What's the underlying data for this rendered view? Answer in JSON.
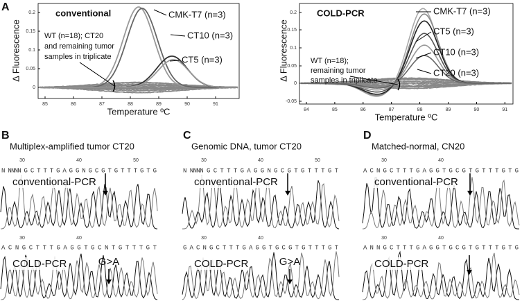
{
  "panel_a": {
    "label": "A",
    "left": {
      "title": "conventional",
      "y_axis": "Δ Fluorescence",
      "x_axis": "Temperature ºC",
      "yticks": [
        "0.2",
        "0.15",
        "0.1",
        "0.05",
        "0"
      ],
      "xticks": [
        "85",
        "86",
        "87",
        "88",
        "89",
        "90",
        "91"
      ],
      "curve_labels": [
        "CMK-T7 (n=3)",
        "CT10 (n=3)",
        "CT5 (n=3)"
      ],
      "note": [
        "WT (n=18); CT20",
        "and remaining tumor",
        "samples in triplicate"
      ]
    },
    "right": {
      "title": "COLD-PCR",
      "y_axis": "Δ Fluorescence",
      "x_axis": "Temperature ºC",
      "yticks": [
        "0.2",
        "0.15",
        "0.1",
        "0.05",
        "0",
        "-0.05"
      ],
      "xticks": [
        "84",
        "85",
        "86",
        "87",
        "88",
        "89",
        "90",
        "91"
      ],
      "curve_labels": [
        "CMK-T7 (n=3)",
        "CT5 (n=3)",
        "CT10 (n=3)",
        "CT20 (n=3)"
      ],
      "note": [
        "WT (n=18);",
        "remaining tumor",
        "samples in triplicate"
      ]
    }
  },
  "panels": [
    {
      "label": "B",
      "title": "Multiplex-amplified tumor CT20",
      "top_numbers": [
        "30",
        "40",
        "50"
      ],
      "top_sequence": "N NNNN G C T T T G A G G N G C G T G T T T G T G",
      "top_label": "conventional-PCR",
      "bottom_numbers": [
        "30",
        "40"
      ],
      "bottom_sequence": "A C N G C T T T G A G G T G C N T G T T T G T",
      "bottom_label": "COLD-PCR",
      "mutation": "G>A"
    },
    {
      "label": "C",
      "title": "Genomic DNA, tumor CT20",
      "top_numbers": [
        "30",
        "40",
        "50"
      ],
      "top_sequence": "N NNNN G C T T T G A G G N G C G T G T T T G T",
      "top_label": "conventional-PCR",
      "bottom_numbers": [
        "30",
        "40"
      ],
      "bottom_sequence": "G A C N G C T T T G A G G T G C G T G T T T G T",
      "bottom_label": "COLD-PCR",
      "mutation": "G>A"
    },
    {
      "label": "D",
      "title": "Matched-normal, CN20",
      "top_numbers": [
        "30",
        "40"
      ],
      "top_sequence": "A C N G C T T T G A G G T G C G T G T T T G T G",
      "top_label": "conventional-PCR",
      "bottom_numbers": [
        "30",
        "40"
      ],
      "bottom_sequence": "A N N G C T T T G A G G T G C G T G T T T G T G",
      "bottom_label": "COLD-PCR"
    }
  ]
}
